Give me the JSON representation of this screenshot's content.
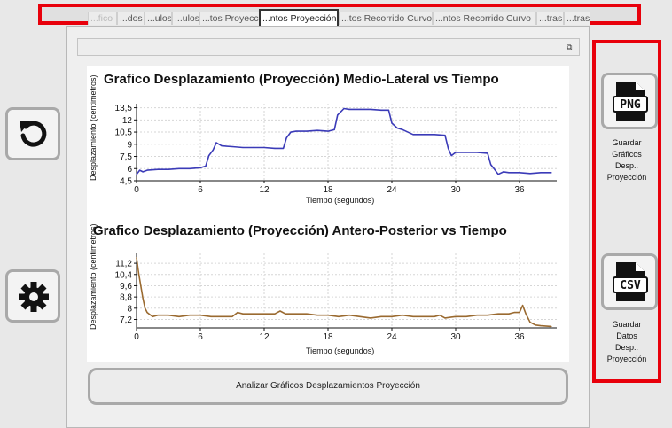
{
  "tabs": [
    {
      "label": "...fico"
    },
    {
      "label": "...dos"
    },
    {
      "label": "...ulos"
    },
    {
      "label": "...ulos"
    },
    {
      "label": "...tos Proyecciór"
    },
    {
      "label": "...ntos Proyección"
    },
    {
      "label": "...tos Recorrido Curvo"
    },
    {
      "label": "...ntos Recorrido Curvo"
    },
    {
      "label": "...tras"
    },
    {
      "label": "...tras"
    }
  ],
  "selected_tab": 5,
  "left_buttons": {
    "reset_icon": "rotate-ccw-icon",
    "settings_icon": "gear-icon"
  },
  "right_buttons": {
    "png_icon": "png-file-icon",
    "png_badge": "PNG",
    "png_label": [
      "Guardar",
      "Gráficos",
      "Desp..",
      "Proyección"
    ],
    "csv_icon": "csv-file-icon",
    "csv_badge": "CSV",
    "csv_label": [
      "Guardar",
      "Datos",
      "Desp..",
      "Proyección"
    ]
  },
  "analyze_button": "Analizar Gráficos Desplazamientos Proyección",
  "colors": {
    "accent_red": "#e8000b",
    "series_ml": "#3b3bb8",
    "series_ap": "#9a6a30"
  },
  "chart_data": [
    {
      "type": "line",
      "title": "Grafico Desplazamiento (Proyección) Medio-Lateral vs Tiempo",
      "xlabel": "Tiempo (segundos)",
      "ylabel": "Desplazamiento (centimetros)",
      "xticks": [
        "0",
        "6",
        "12",
        "18",
        "24",
        "30",
        "36"
      ],
      "yticks": [
        "4,5",
        "6",
        "7,5",
        "9",
        "10,5",
        "12",
        "13,5"
      ],
      "xlim": [
        0,
        39.5
      ],
      "ylim": [
        4.5,
        14
      ],
      "grid": true,
      "series": [
        {
          "x": [
            0,
            0.3,
            0.6,
            1,
            2,
            3,
            4,
            5,
            6,
            6.5,
            6.8,
            7.2,
            7.5,
            8,
            9,
            10,
            11,
            12,
            13,
            13.8,
            14.1,
            14.5,
            15,
            16,
            17,
            18,
            18.6,
            18.9,
            19.5,
            20,
            21,
            22,
            23,
            23.7,
            24,
            24.5,
            25,
            26,
            27,
            28,
            29,
            29.3,
            29.6,
            30,
            31,
            32,
            33,
            33.3,
            33.6,
            34,
            34.5,
            35,
            36,
            37,
            38,
            39
          ],
          "y": [
            5.3,
            5.8,
            5.6,
            5.8,
            5.9,
            5.9,
            6.0,
            6.0,
            6.1,
            6.3,
            7.6,
            8.3,
            9.2,
            8.8,
            8.7,
            8.6,
            8.6,
            8.6,
            8.5,
            8.5,
            9.8,
            10.5,
            10.6,
            10.6,
            10.7,
            10.6,
            10.8,
            12.6,
            13.4,
            13.3,
            13.3,
            13.3,
            13.2,
            13.2,
            11.6,
            11.0,
            10.8,
            10.2,
            10.2,
            10.2,
            10.1,
            8.5,
            7.6,
            8.0,
            8.0,
            8.0,
            7.9,
            6.5,
            6.0,
            5.3,
            5.6,
            5.5,
            5.5,
            5.4,
            5.5,
            5.5
          ]
        }
      ]
    },
    {
      "type": "line",
      "title": "Grafico Desplazamiento (Proyección) Antero-Posterior vs Tiempo",
      "xlabel": "Tiempo (segundos)",
      "ylabel": "Desplazamiento (centimetros)",
      "xticks": [
        "0",
        "6",
        "12",
        "18",
        "24",
        "30",
        "36"
      ],
      "yticks": [
        "7,2",
        "8",
        "8,8",
        "9,6",
        "10,4",
        "11,2"
      ],
      "xlim": [
        0,
        39.5
      ],
      "ylim": [
        6.6,
        11.9
      ],
      "grid": true,
      "series": [
        {
          "x": [
            0,
            0.2,
            0.4,
            0.6,
            0.8,
            1,
            1.5,
            2,
            3,
            4,
            5,
            6,
            7,
            8,
            9,
            9.5,
            10,
            11,
            12,
            13,
            13.5,
            14,
            15,
            16,
            17,
            18,
            19,
            20,
            21,
            22,
            23,
            24,
            25,
            26,
            27,
            28,
            28.5,
            29,
            30,
            31,
            32,
            33,
            34,
            35,
            35.5,
            36,
            36.3,
            36.6,
            37,
            37.5,
            38,
            39
          ],
          "y": [
            11.6,
            10.5,
            9.6,
            8.7,
            8.0,
            7.7,
            7.4,
            7.5,
            7.5,
            7.4,
            7.5,
            7.5,
            7.4,
            7.4,
            7.4,
            7.7,
            7.6,
            7.6,
            7.6,
            7.6,
            7.8,
            7.6,
            7.6,
            7.6,
            7.5,
            7.5,
            7.4,
            7.5,
            7.4,
            7.3,
            7.4,
            7.4,
            7.5,
            7.4,
            7.4,
            7.4,
            7.5,
            7.3,
            7.4,
            7.4,
            7.5,
            7.5,
            7.6,
            7.6,
            7.7,
            7.7,
            8.2,
            7.6,
            7.0,
            6.8,
            6.75,
            6.7
          ]
        }
      ]
    }
  ]
}
